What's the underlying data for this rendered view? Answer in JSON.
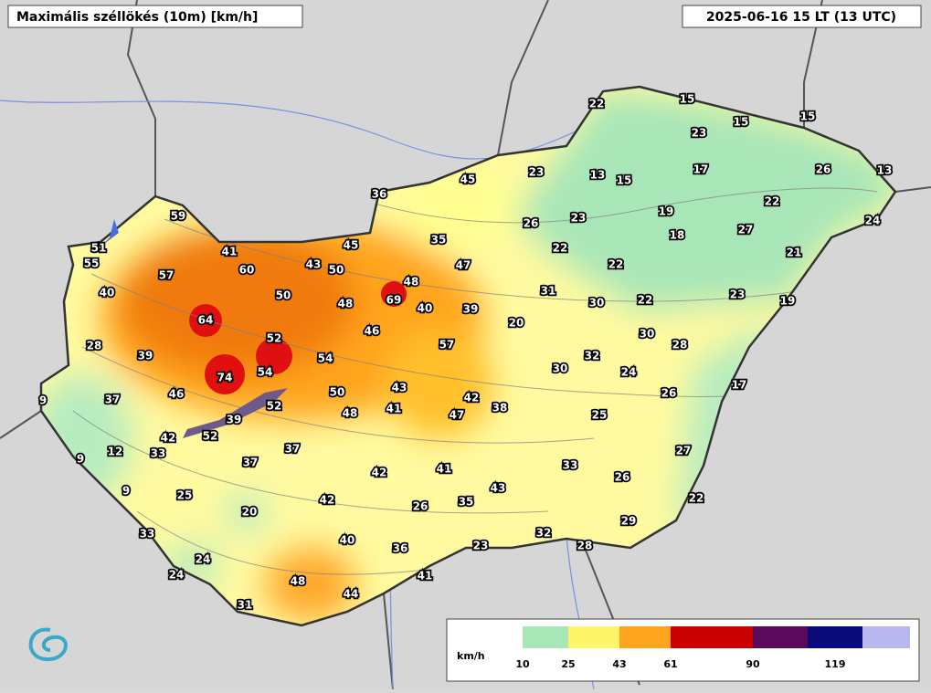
{
  "header": {
    "title": "Maximális széllökés (10m) [km/h]",
    "time": "2025-06-16 15 LT (13 UTC)"
  },
  "stations": [
    22,
    15,
    15,
    15,
    23,
    17,
    26,
    13,
    23,
    13,
    15,
    45,
    36,
    22,
    19,
    24,
    26,
    23,
    27,
    18,
    59,
    35,
    45,
    51,
    41,
    22,
    21,
    55,
    60,
    43,
    50,
    47,
    22,
    57,
    48,
    40,
    50,
    31,
    69,
    48,
    40,
    39,
    30,
    22,
    23,
    19,
    64,
    20,
    46,
    52,
    30,
    28,
    28,
    39,
    57,
    54,
    32,
    54,
    74,
    30,
    24,
    17,
    37,
    46,
    50,
    43,
    26,
    9,
    42,
    52,
    38,
    41,
    48,
    39,
    47,
    25,
    42,
    52,
    33,
    12,
    37,
    27,
    9,
    37,
    33,
    41,
    42,
    26,
    43,
    9,
    25,
    42,
    35,
    22,
    26,
    20,
    29,
    33,
    32,
    40,
    23,
    28,
    36,
    24,
    24,
    41,
    48,
    44,
    31
  ],
  "legend": {
    "unit": "km/h",
    "ticks": [
      "10",
      "25",
      "43",
      "61",
      "90",
      "119"
    ]
  }
}
